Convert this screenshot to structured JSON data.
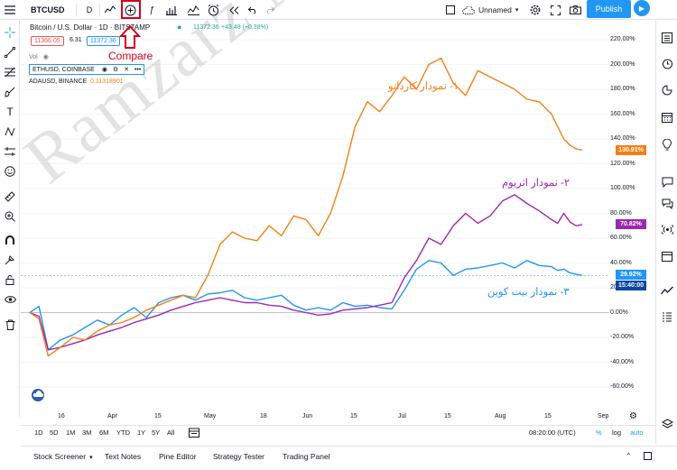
{
  "toolbar": {
    "symbol": "BTCUSD",
    "interval": "D",
    "layout_name": "Unnamed",
    "publish_label": "Publish"
  },
  "legend": {
    "main_title": "Bitcoin / U.S. Dollar · 1D · BITSTAMP",
    "main_price": "11372.36",
    "main_change": "+43.48 (+0.38%)",
    "bid": "11366.05",
    "spread": "6.31",
    "ask": "11372.36",
    "vol_label": "Vol",
    "compare_1": "ETHUSD, COINBASE",
    "compare_2_name": "ADAUSD, BINANCE",
    "compare_2_value": "0.11318901"
  },
  "compare_callout": "Compare",
  "annotations": {
    "ada": "۱- نمودار کاردانو",
    "eth": "۲- نمودار اتریوم",
    "btc": "۳- نمودار بیت کوین"
  },
  "watermark": "Ramzarz News",
  "price_scale": [
    "220.00%",
    "200.00%",
    "180.00%",
    "160.00%",
    "140.00%",
    "120.00%",
    "100.00%",
    "80.00%",
    "60.00%",
    "40.00%",
    "20.00%",
    "0.00%",
    "-20.00%",
    "-40.00%",
    "-60.00%"
  ],
  "price_tags": {
    "ada": "130.91%",
    "eth": "70.82%",
    "btc": "29.92%",
    "timer": "15:40:00"
  },
  "time_axis": [
    "16",
    "Apr",
    "15",
    "May",
    "18",
    "Jun",
    "15",
    "Jul",
    "15",
    "Aug",
    "15",
    "Sep"
  ],
  "ranges": [
    "1D",
    "5D",
    "1M",
    "3M",
    "6M",
    "YTD",
    "1Y",
    "5Y",
    "All"
  ],
  "bottom_right": {
    "time": "08:20:00 (UTC)",
    "percent": "%",
    "log": "log",
    "auto": "auto"
  },
  "tabs": [
    "Stock Screener",
    "Text Notes",
    "Pine Editor",
    "Strategy Tester",
    "Trading Panel"
  ],
  "colors": {
    "ada": "#f57f17",
    "eth": "#9c27b0",
    "btc": "#2196f3",
    "accent": "#2196f3",
    "callout": "#d0021b"
  },
  "chart_data": {
    "type": "line",
    "ylabel": "",
    "ylim": [
      -65,
      230
    ],
    "series": [
      {
        "name": "ADAUSD, BINANCE",
        "x": [
          0,
          3,
          6,
          10,
          14,
          18,
          22,
          26,
          30,
          34,
          38,
          42,
          46,
          50,
          54,
          58,
          62,
          66,
          70,
          74,
          78,
          82,
          86,
          90,
          94,
          98,
          102,
          106,
          110,
          114,
          118,
          122,
          126,
          130,
          134,
          138,
          142,
          146,
          150,
          154,
          158,
          162,
          166,
          170,
          172,
          174,
          176,
          178,
          180
        ],
        "values": [
          0,
          -5,
          -35,
          -28,
          -20,
          -22,
          -15,
          -10,
          -8,
          -4,
          2,
          6,
          10,
          14,
          12,
          30,
          55,
          65,
          60,
          58,
          70,
          62,
          78,
          75,
          62,
          80,
          110,
          150,
          170,
          162,
          175,
          190,
          180,
          200,
          205,
          185,
          175,
          195,
          190,
          185,
          180,
          172,
          170,
          160,
          150,
          140,
          135,
          132,
          131
        ]
      },
      {
        "name": "ETHUSD, COINBASE",
        "x": [
          0,
          3,
          6,
          10,
          14,
          18,
          22,
          26,
          30,
          34,
          38,
          42,
          46,
          50,
          54,
          58,
          62,
          66,
          70,
          74,
          78,
          82,
          86,
          90,
          94,
          98,
          102,
          106,
          110,
          114,
          118,
          122,
          126,
          130,
          134,
          138,
          142,
          146,
          150,
          154,
          158,
          162,
          166,
          170,
          172,
          174,
          176,
          178,
          180
        ],
        "values": [
          0,
          -3,
          -30,
          -28,
          -25,
          -22,
          -18,
          -15,
          -12,
          -8,
          -5,
          -2,
          2,
          5,
          8,
          10,
          12,
          10,
          8,
          8,
          6,
          5,
          2,
          0,
          -2,
          -1,
          2,
          3,
          4,
          6,
          8,
          28,
          42,
          60,
          55,
          70,
          80,
          72,
          78,
          90,
          95,
          88,
          82,
          75,
          72,
          80,
          73,
          70,
          71
        ]
      },
      {
        "name": "BTCUSD",
        "x": [
          0,
          3,
          6,
          10,
          14,
          18,
          22,
          26,
          30,
          34,
          38,
          42,
          46,
          50,
          54,
          58,
          62,
          66,
          70,
          74,
          78,
          82,
          86,
          90,
          94,
          98,
          102,
          106,
          110,
          114,
          118,
          122,
          126,
          130,
          134,
          138,
          142,
          146,
          150,
          154,
          158,
          162,
          166,
          170,
          172,
          174,
          176,
          178,
          180
        ],
        "values": [
          0,
          5,
          -30,
          -22,
          -18,
          -12,
          -6,
          -10,
          -2,
          4,
          -4,
          8,
          12,
          14,
          10,
          15,
          16,
          18,
          12,
          10,
          12,
          14,
          6,
          2,
          4,
          2,
          8,
          5,
          6,
          4,
          3,
          18,
          35,
          42,
          40,
          30,
          35,
          36,
          38,
          40,
          36,
          42,
          38,
          37,
          34,
          35,
          32,
          31,
          30
        ]
      }
    ]
  }
}
